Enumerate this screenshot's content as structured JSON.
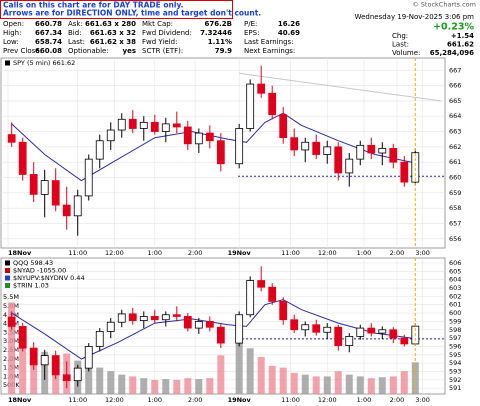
{
  "note": [
    "Calls on this chart are for DAY TRADE only.",
    "Arrows are for DIRECTION ONLY, time and target don't count."
  ],
  "credit": "© StockCharts.com",
  "quote": {
    "columns": [
      [
        [
          "Open:",
          "660.78"
        ],
        [
          "High:",
          "667.34"
        ],
        [
          "Low:",
          "658.74"
        ],
        [
          "Prev Close:",
          "660.08"
        ]
      ],
      [
        [
          "Ask:",
          "661.63 x 280"
        ],
        [
          "Bid:",
          "661.63 x 32"
        ],
        [
          "Last:",
          "661.62 x 38"
        ],
        [
          "Optionable:",
          "yes"
        ]
      ],
      [
        [
          "Mkt Cap:",
          "676.2B"
        ],
        [
          "Fwd Dividend:",
          "7.32446"
        ],
        [
          "Fwd Yield:",
          "1.11%"
        ],
        [
          "SCTR (ETF):",
          "79.9"
        ]
      ],
      [
        [
          "P/E:",
          "16.26"
        ],
        [
          "EPS:",
          "40.69"
        ],
        [
          "Last Earnings:"
        ],
        [
          "Next Earnings:"
        ]
      ]
    ],
    "date": "Wednesday 19-Nov-2025 3:06 pm",
    "change_pct": "+0.23%",
    "stats": [
      [
        "Chg:",
        "+1.54"
      ],
      [
        "Last:",
        "661.62"
      ],
      [
        "Volume:",
        "65,284,096"
      ]
    ]
  },
  "chart_data": [
    {
      "type": "candlestick",
      "legend": [
        "SPY (5 min) 661.62"
      ],
      "x": [
        0.1,
        0.4,
        0.7,
        1.0,
        1.3,
        1.6,
        1.9,
        2.2,
        2.5,
        2.8,
        3.1,
        3.4,
        3.7,
        4.0,
        4.3,
        4.6,
        4.9,
        5.2,
        5.5,
        5.8,
        6.3,
        6.6,
        6.9,
        7.2,
        7.5,
        7.8,
        8.1,
        8.4,
        8.7,
        9.0,
        9.3,
        9.6,
        9.9,
        10.2,
        10.5,
        10.8,
        11.1
      ],
      "open": [
        662.8,
        662.3,
        660.2,
        658.9,
        659.8,
        658.2,
        657.5,
        658.8,
        661.2,
        662.4,
        663.1,
        663.8,
        663.2,
        663.6,
        663.0,
        663.5,
        663.3,
        662.2,
        662.9,
        662.4,
        660.9,
        663.2,
        666.1,
        665.5,
        664.1,
        662.6,
        661.8,
        662.3,
        661.5,
        662.0,
        660.3,
        661.2,
        662.1,
        661.6,
        661.9,
        661.0,
        659.7
      ],
      "high": [
        663.6,
        662.6,
        661.0,
        660.5,
        660.6,
        659.4,
        659.2,
        661.5,
        662.8,
        663.6,
        664.2,
        664.4,
        664.0,
        664.1,
        663.9,
        664.3,
        663.7,
        663.2,
        663.4,
        662.9,
        663.5,
        666.4,
        667.3,
        666.0,
        664.6,
        663.2,
        662.6,
        662.8,
        662.4,
        662.3,
        661.6,
        662.4,
        662.6,
        662.3,
        662.2,
        661.4,
        661.9
      ],
      "low": [
        662.0,
        659.8,
        658.4,
        657.4,
        657.8,
        656.6,
        656.2,
        658.5,
        660.6,
        661.8,
        662.6,
        662.9,
        662.4,
        662.8,
        662.3,
        662.9,
        661.8,
        661.6,
        661.9,
        660.4,
        660.6,
        663.0,
        665.2,
        663.8,
        662.2,
        661.4,
        661.0,
        661.2,
        660.9,
        659.8,
        659.4,
        660.8,
        661.2,
        660.8,
        660.6,
        659.4,
        659.5
      ],
      "close": [
        662.3,
        660.2,
        658.9,
        659.8,
        658.2,
        657.5,
        658.8,
        661.2,
        662.4,
        663.1,
        663.8,
        663.2,
        663.6,
        663.0,
        663.5,
        663.3,
        662.2,
        662.9,
        662.4,
        660.9,
        663.2,
        666.1,
        665.5,
        664.1,
        662.6,
        661.8,
        662.3,
        661.5,
        662.0,
        660.3,
        661.2,
        662.1,
        661.6,
        661.9,
        661.0,
        659.7,
        661.62
      ],
      "up_color": "#000000",
      "down_color": "#e0001b",
      "lines": [
        {
          "color": "#2b2ba8",
          "x": [
            0.1,
            1.0,
            2.0,
            3.0,
            4.0,
            5.0,
            6.0,
            6.5,
            7.0,
            7.5,
            8.0,
            9.0,
            10.0,
            11.0
          ],
          "values": [
            663.5,
            661.5,
            659.8,
            661.2,
            662.6,
            663.0,
            662.5,
            662.3,
            663.6,
            664.2,
            663.4,
            662.4,
            661.5,
            661.0
          ]
        },
        {
          "color": "#c8c8c8",
          "x": [
            6.3,
            11.8
          ],
          "values": [
            666.8,
            665.0
          ]
        }
      ],
      "hline": 660.08,
      "hline_color": "#2b2ba8",
      "xlim": [
        0,
        11.8
      ],
      "ylim": [
        655.4,
        667.8
      ],
      "xticks": [
        {
          "value": 0,
          "label": "18Nov"
        },
        {
          "value": 1.9,
          "label": "11:00"
        },
        {
          "value": 2.9,
          "label": "12:00"
        },
        {
          "value": 4.0,
          "label": "1:00"
        },
        {
          "value": 5.1,
          "label": "2:00"
        },
        {
          "value": 6.3,
          "label": "19Nov"
        },
        {
          "value": 7.7,
          "label": "11:00"
        },
        {
          "value": 8.7,
          "label": "12:00"
        },
        {
          "value": 9.7,
          "label": "1:00"
        },
        {
          "value": 10.6,
          "label": "2:00"
        },
        {
          "value": 11.3,
          "label": "3:00"
        }
      ],
      "yticks": [
        656,
        657,
        658,
        659,
        660,
        661,
        662,
        663,
        664,
        665,
        666,
        667
      ],
      "grid": true
    },
    {
      "type": "candlestick",
      "legend": [
        "QQQ 598.43",
        "$NYAD -1055.00",
        "$NYUPV:$NYDNV 0.44",
        "$TRIN 1.03"
      ],
      "x": [
        0.1,
        0.4,
        0.7,
        1.0,
        1.3,
        1.6,
        1.9,
        2.2,
        2.5,
        2.8,
        3.1,
        3.4,
        3.7,
        4.0,
        4.3,
        4.6,
        4.9,
        5.2,
        5.5,
        5.8,
        6.3,
        6.6,
        6.9,
        7.2,
        7.5,
        7.8,
        8.1,
        8.4,
        8.7,
        9.0,
        9.3,
        9.6,
        9.9,
        10.2,
        10.5,
        10.8,
        11.1
      ],
      "open": [
        599.5,
        598.4,
        595.8,
        593.8,
        594.9,
        592.6,
        591.9,
        593.4,
        596.0,
        597.8,
        598.9,
        599.9,
        599.1,
        599.6,
        599.2,
        599.8,
        599.6,
        598.2,
        599.0,
        598.3,
        596.4,
        599.8,
        603.9,
        603.1,
        601.4,
        599.2,
        598.0,
        598.6,
        597.7,
        598.3,
        596.1,
        597.2,
        598.2,
        597.6,
        598.0,
        597.0,
        596.3
      ],
      "high": [
        600.2,
        598.8,
        596.5,
        595.6,
        595.5,
        594.2,
        593.8,
        596.4,
        598.2,
        599.4,
        600.4,
        600.6,
        600.2,
        600.4,
        600.2,
        600.8,
        600.0,
        599.4,
        599.6,
        598.8,
        600.2,
        604.4,
        605.6,
        603.6,
        601.9,
        599.8,
        599.0,
        599.2,
        598.8,
        598.6,
        597.6,
        598.6,
        598.8,
        598.4,
        598.3,
        597.4,
        598.8
      ],
      "low": [
        598.0,
        595.4,
        593.2,
        592.0,
        592.1,
        591.0,
        591.2,
        593.0,
        595.4,
        597.0,
        598.3,
        598.6,
        598.2,
        598.8,
        598.4,
        599.0,
        597.8,
        597.5,
        597.8,
        595.8,
        596.0,
        599.5,
        602.6,
        601.0,
        598.6,
        597.6,
        597.2,
        597.3,
        596.9,
        595.5,
        595.3,
        596.8,
        597.2,
        596.9,
        596.4,
        596.0,
        596.1
      ],
      "close": [
        598.4,
        595.8,
        593.8,
        594.9,
        592.6,
        591.9,
        593.4,
        596.0,
        597.8,
        598.9,
        599.9,
        599.1,
        599.6,
        599.2,
        599.8,
        599.6,
        598.2,
        599.0,
        598.3,
        596.4,
        599.8,
        603.9,
        603.1,
        601.4,
        599.2,
        598.0,
        598.6,
        597.7,
        598.3,
        596.1,
        597.2,
        598.2,
        597.6,
        598.0,
        597.0,
        596.3,
        598.43
      ],
      "volume": [
        5200000,
        3100000,
        2600000,
        2400000,
        2100000,
        2300000,
        1900000,
        1700000,
        1500000,
        1300000,
        1100000,
        1000000,
        900000,
        800000,
        850000,
        800000,
        900000,
        850000,
        900000,
        2200000,
        3300000,
        2600000,
        2100000,
        1600000,
        1500000,
        1200000,
        1100000,
        1000000,
        1000000,
        1300000,
        1100000,
        1000000,
        900000,
        950000,
        1000000,
        1300000,
        1800000
      ],
      "volume_axis": "y2",
      "up_color": "#000000",
      "down_color": "#e0001b",
      "lines": [
        {
          "color": "#2b2ba8",
          "x": [
            0.1,
            1.0,
            2.0,
            3.0,
            4.0,
            5.0,
            6.0,
            6.5,
            7.0,
            7.5,
            8.0,
            9.0,
            10.0,
            11.0
          ],
          "values": [
            600.0,
            597.5,
            594.5,
            596.5,
            598.8,
            599.3,
            598.6,
            598.4,
            601.0,
            601.6,
            600.4,
            598.8,
            597.6,
            597.0
          ]
        }
      ],
      "hline": 596.9,
      "hline_color": "#2b2ba8",
      "xlim": [
        0,
        11.8
      ],
      "ylim": [
        590.3,
        606.6
      ],
      "y2lim": [
        0,
        7730000
      ],
      "xticks": [
        {
          "value": 0,
          "label": "18Nov"
        },
        {
          "value": 1.9,
          "label": "11:00"
        },
        {
          "value": 2.9,
          "label": "12:00"
        },
        {
          "value": 4.0,
          "label": "1:00"
        },
        {
          "value": 5.1,
          "label": "2:00"
        },
        {
          "value": 6.3,
          "label": "19Nov"
        },
        {
          "value": 7.7,
          "label": "11:00"
        },
        {
          "value": 8.7,
          "label": "12:00"
        },
        {
          "value": 9.7,
          "label": "1:00"
        },
        {
          "value": 10.6,
          "label": "2:00"
        },
        {
          "value": 11.3,
          "label": "3:00"
        }
      ],
      "yticks": [
        591,
        592,
        593,
        594,
        595,
        596,
        597,
        598,
        599,
        600,
        601,
        602,
        603,
        604,
        605,
        606
      ],
      "y2ticks": [
        {
          "value": 500000,
          "label": "500K"
        },
        {
          "value": 1000000,
          "label": "1.0M"
        },
        {
          "value": 1500000,
          "label": "1.5M"
        },
        {
          "value": 2000000,
          "label": "2.0M"
        },
        {
          "value": 2500000,
          "label": "2.5M"
        },
        {
          "value": 3000000,
          "label": "3.0M"
        },
        {
          "value": 3500000,
          "label": "3.5M"
        },
        {
          "value": 4000000,
          "label": "4.0M"
        },
        {
          "value": 4500000,
          "label": "4.5M"
        },
        {
          "value": 5000000,
          "label": "5.0M"
        },
        {
          "value": 5500000,
          "label": "5.5M"
        }
      ],
      "grid": true
    }
  ]
}
